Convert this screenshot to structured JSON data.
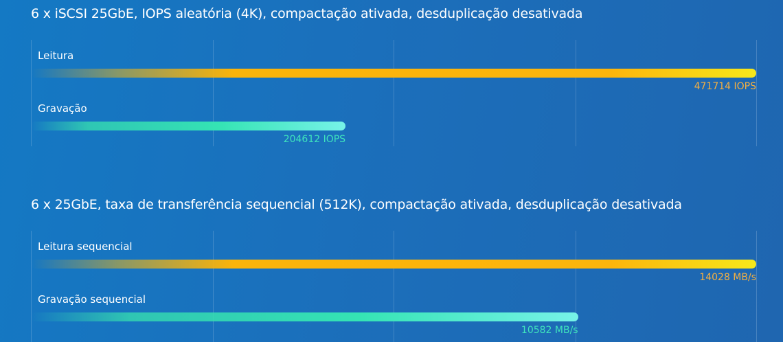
{
  "colors": {
    "background": "#1677c2",
    "read_bar": "#fbb40a",
    "read_bar_tip": "#f7e81a",
    "write_bar": "#35e4b4",
    "write_bar_tip": "#77f2e8",
    "read_value_text": "#f6b040",
    "write_value_text": "#3fe5bd"
  },
  "chart_data": [
    {
      "type": "bar",
      "orientation": "horizontal",
      "title": "6 x iSCSI 25GbE, IOPS aleatória (4K), compactação ativada, desduplicação desativada",
      "xlim": [
        0,
        471714
      ],
      "grid": true,
      "unit": "IOPS",
      "bars": [
        {
          "label": "Leitura",
          "value": 471714,
          "value_label": "471714 IOPS",
          "kind": "read"
        },
        {
          "label": "Gravação",
          "value": 204612,
          "value_label": "204612 IOPS",
          "kind": "write"
        }
      ]
    },
    {
      "type": "bar",
      "orientation": "horizontal",
      "title": "6 x 25GbE, taxa de transferência sequencial (512K), compactação ativada, desduplicação desativada",
      "xlim": [
        0,
        14028
      ],
      "grid": true,
      "unit": "MB/s",
      "bars": [
        {
          "label": "Leitura sequencial",
          "value": 14028,
          "value_label": "14028 MB/s",
          "kind": "read"
        },
        {
          "label": "Gravação sequencial",
          "value": 10582,
          "value_label": "10582 MB/s",
          "kind": "write"
        }
      ]
    }
  ]
}
